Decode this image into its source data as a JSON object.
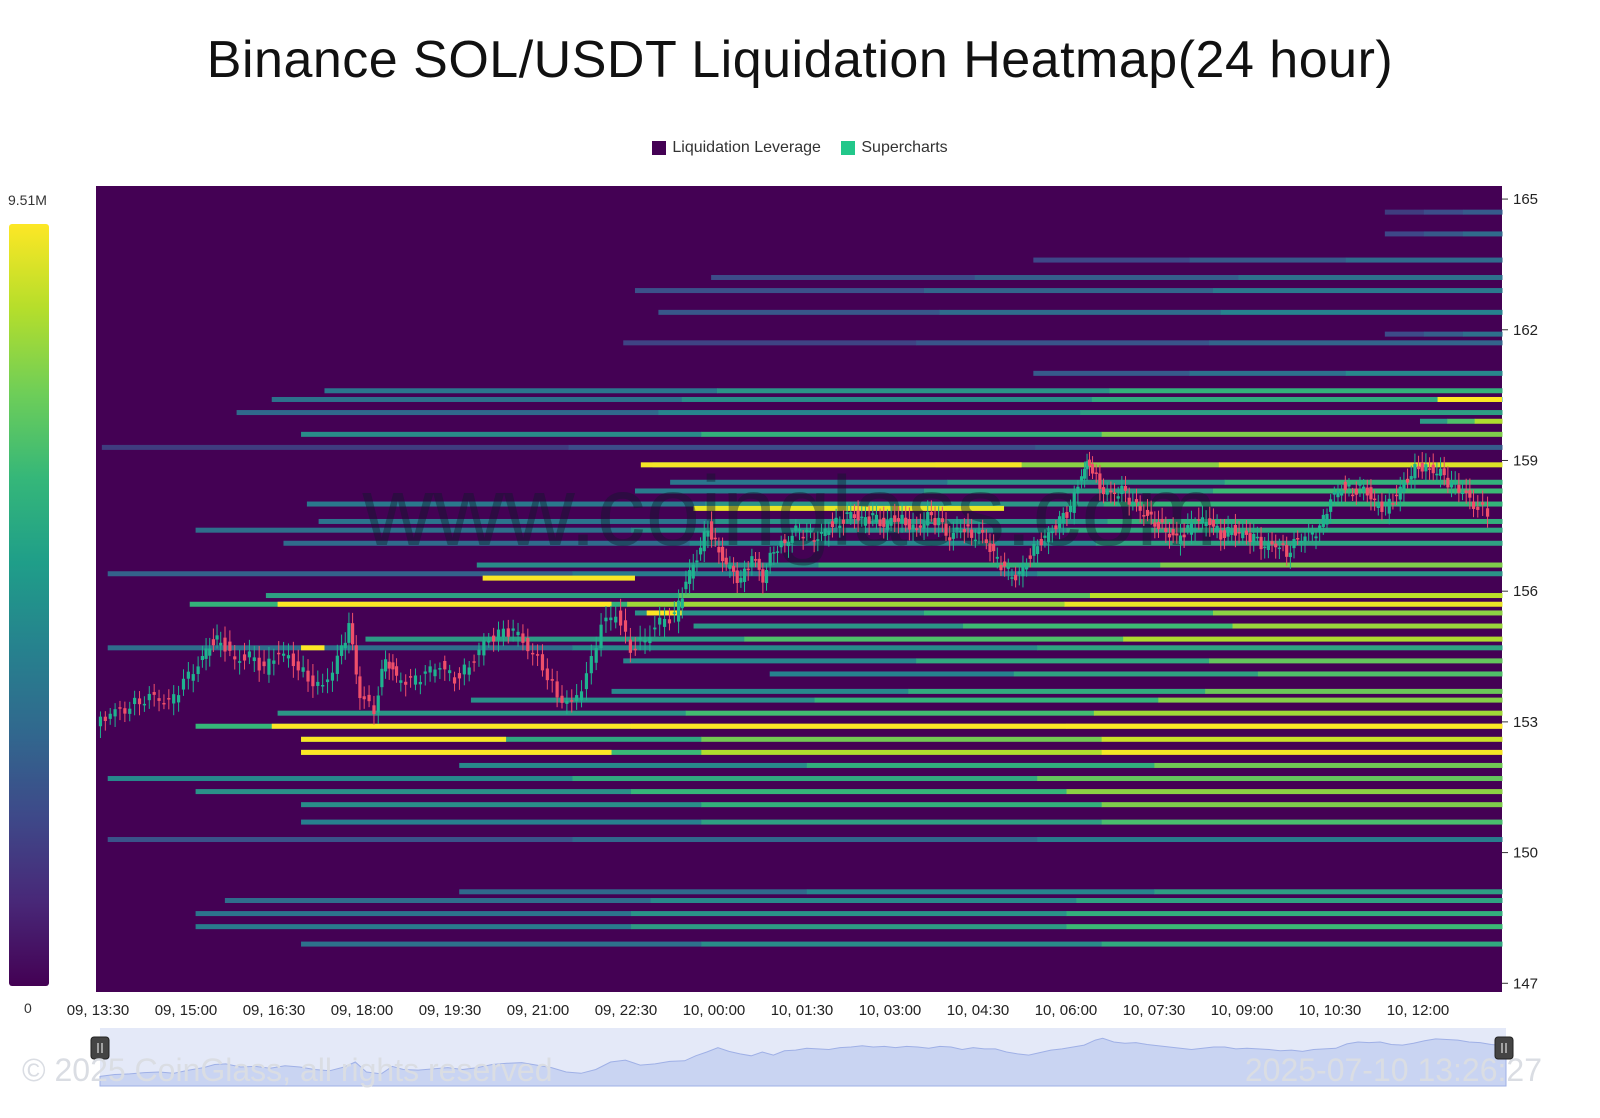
{
  "title": "Binance SOL/USDT Liquidation Heatmap(24 hour)",
  "legend": [
    {
      "label": "Liquidation Leverage",
      "color": "#440154"
    },
    {
      "label": "Supercharts",
      "color": "#22c78a"
    }
  ],
  "colorbar": {
    "max_label": "9.51M",
    "min_label": "0"
  },
  "watermark": "www.coinglass.com",
  "footer": {
    "copyright": "© 2025 CoinGlass, all rights reserved",
    "timestamp": "2025-07-10 13:26:27"
  },
  "chart_data": {
    "type": "heatmap",
    "title": "Binance SOL/USDT Liquidation Heatmap(24 hour)",
    "x_tick_labels": [
      "09, 13:30",
      "09, 15:00",
      "09, 16:30",
      "09, 18:00",
      "09, 19:30",
      "09, 21:00",
      "09, 22:30",
      "10, 00:00",
      "10, 01:30",
      "10, 03:00",
      "10, 04:30",
      "10, 06:00",
      "10, 07:30",
      "10, 09:00",
      "10, 10:30",
      "10, 12:00"
    ],
    "y_tick_labels": [
      "165",
      "162",
      "159",
      "156",
      "153",
      "150",
      "147"
    ],
    "y_range": [
      146.8,
      165.3
    ],
    "x_range_hours": [
      0,
      24
    ],
    "background_color": "#440154",
    "colorscale": [
      "#440154",
      "#3e4989",
      "#26828e",
      "#35b779",
      "#b5de2b",
      "#fde725"
    ],
    "value_range": [
      0,
      9.51
    ],
    "value_unit": "M",
    "liquidation_bands": [
      {
        "price": 164.7,
        "start_hour": 22,
        "value": 2.5
      },
      {
        "price": 164.2,
        "start_hour": 22,
        "value": 3.0
      },
      {
        "price": 163.6,
        "start_hour": 16,
        "value": 3.0
      },
      {
        "price": 163.2,
        "start_hour": 10.5,
        "value": 3.2
      },
      {
        "price": 162.9,
        "start_hour": 9.2,
        "value": 3.5
      },
      {
        "price": 162.4,
        "start_hour": 9.6,
        "value": 3.8
      },
      {
        "price": 161.9,
        "start_hour": 22,
        "value": 3.2
      },
      {
        "price": 161.7,
        "start_hour": 9.0,
        "value": 2.8
      },
      {
        "price": 161.0,
        "start_hour": 16.0,
        "value": 4.0
      },
      {
        "price": 160.6,
        "start_hour": 3.9,
        "value": 5.5
      },
      {
        "price": 160.4,
        "start_hour": 3.0,
        "value": 5.2
      },
      {
        "price": 160.1,
        "start_hour": 2.4,
        "value": 4.8
      },
      {
        "price": 159.9,
        "start_hour": 22.6,
        "value": 7.5
      },
      {
        "price": 159.6,
        "start_hour": 3.5,
        "value": 6.8
      },
      {
        "price": 159.3,
        "start_hour": 0.1,
        "value": 2.5
      },
      {
        "price": 158.9,
        "start_hour": 9.5,
        "value": 8.6
      },
      {
        "price": 158.5,
        "start_hour": 9.8,
        "value": 5.5
      },
      {
        "price": 158.3,
        "start_hour": 9.2,
        "value": 5.8
      },
      {
        "price": 158.0,
        "start_hour": 3.6,
        "value": 5.6
      },
      {
        "price": 157.6,
        "start_hour": 3.8,
        "value": 5.4
      },
      {
        "price": 157.4,
        "start_hour": 1.7,
        "value": 5.1
      },
      {
        "price": 157.1,
        "start_hour": 3.2,
        "value": 4.9
      },
      {
        "price": 156.6,
        "start_hour": 6.5,
        "value": 6.8
      },
      {
        "price": 156.4,
        "start_hour": 0.2,
        "value": 4.4
      },
      {
        "price": 155.9,
        "start_hour": 2.9,
        "value": 7.8
      },
      {
        "price": 155.7,
        "start_hour": 1.6,
        "value": 9.0
      },
      {
        "price": 155.5,
        "start_hour": 9.2,
        "value": 7.0
      },
      {
        "price": 155.2,
        "start_hour": 10.2,
        "value": 7.2
      },
      {
        "price": 154.9,
        "start_hour": 4.6,
        "value": 7.5
      },
      {
        "price": 154.7,
        "start_hour": 0.2,
        "value": 5.0
      },
      {
        "price": 154.4,
        "start_hour": 9.0,
        "value": 6.4
      },
      {
        "price": 154.1,
        "start_hour": 11.5,
        "value": 6.1
      },
      {
        "price": 153.7,
        "start_hour": 8.8,
        "value": 6.5
      },
      {
        "price": 153.5,
        "start_hour": 6.4,
        "value": 6.9
      },
      {
        "price": 153.2,
        "start_hour": 3.1,
        "value": 7.3
      },
      {
        "price": 152.9,
        "start_hour": 1.7,
        "value": 9.2
      },
      {
        "price": 152.6,
        "start_hour": 3.5,
        "value": 8.2
      },
      {
        "price": 152.3,
        "start_hour": 3.5,
        "value": 9.3
      },
      {
        "price": 152.0,
        "start_hour": 6.2,
        "value": 6.6
      },
      {
        "price": 151.7,
        "start_hour": 0.2,
        "value": 6.4
      },
      {
        "price": 151.4,
        "start_hour": 1.7,
        "value": 7.0
      },
      {
        "price": 151.1,
        "start_hour": 3.5,
        "value": 6.8
      },
      {
        "price": 150.7,
        "start_hour": 3.5,
        "value": 6.0
      },
      {
        "price": 150.3,
        "start_hour": 0.2,
        "value": 3.6
      },
      {
        "price": 149.1,
        "start_hour": 6.2,
        "value": 4.8
      },
      {
        "price": 148.9,
        "start_hour": 2.2,
        "value": 5.0
      },
      {
        "price": 148.6,
        "start_hour": 1.7,
        "value": 5.4
      },
      {
        "price": 148.3,
        "start_hour": 1.7,
        "value": 5.8
      },
      {
        "price": 147.9,
        "start_hour": 3.5,
        "value": 5.2
      }
    ],
    "hotspots": [
      {
        "price": 158.9,
        "start_hour": 9.3,
        "end_hour": 15.8,
        "value": 9.3
      },
      {
        "price": 157.9,
        "start_hour": 10.2,
        "end_hour": 15.5,
        "value": 9.0
      },
      {
        "price": 156.3,
        "start_hour": 6.6,
        "end_hour": 9.2,
        "value": 9.4
      },
      {
        "price": 155.7,
        "start_hour": 3.1,
        "end_hour": 8.8,
        "value": 9.5
      },
      {
        "price": 155.5,
        "start_hour": 9.4,
        "end_hour": 10.0,
        "value": 9.5
      },
      {
        "price": 154.7,
        "start_hour": 3.5,
        "end_hour": 3.9,
        "value": 9.5
      },
      {
        "price": 152.9,
        "start_hour": 3.0,
        "end_hour": 24.0,
        "value": 9.5
      },
      {
        "price": 152.6,
        "start_hour": 3.5,
        "end_hour": 7.0,
        "value": 9.4
      },
      {
        "price": 152.3,
        "start_hour": 3.5,
        "end_hour": 8.8,
        "value": 9.5
      },
      {
        "price": 160.4,
        "start_hour": 22.9,
        "end_hour": 24.0,
        "value": 9.5
      }
    ],
    "price_candles": {
      "close_path": [
        [
          0.0,
          152.9
        ],
        [
          0.4,
          153.2
        ],
        [
          0.8,
          153.3
        ],
        [
          1.2,
          153.5
        ],
        [
          1.6,
          153.6
        ],
        [
          2.0,
          153.4
        ],
        [
          2.4,
          153.9
        ],
        [
          2.8,
          154.3
        ],
        [
          3.1,
          154.8
        ],
        [
          3.4,
          154.9
        ],
        [
          3.8,
          154.4
        ],
        [
          4.2,
          154.5
        ],
        [
          4.6,
          154.2
        ],
        [
          5.0,
          154.6
        ],
        [
          5.4,
          154.4
        ],
        [
          5.8,
          154.0
        ],
        [
          6.2,
          153.8
        ],
        [
          6.6,
          154.4
        ],
        [
          6.9,
          155.2
        ],
        [
          7.2,
          153.6
        ],
        [
          7.6,
          153.3
        ],
        [
          7.9,
          154.5
        ],
        [
          8.2,
          154.0
        ],
        [
          8.6,
          153.9
        ],
        [
          9.0,
          154.1
        ],
        [
          9.4,
          154.3
        ],
        [
          9.8,
          154.0
        ],
        [
          10.2,
          154.3
        ],
        [
          10.6,
          154.8
        ],
        [
          11.0,
          155.0
        ],
        [
          11.4,
          155.1
        ],
        [
          11.8,
          154.7
        ],
        [
          12.2,
          154.3
        ],
        [
          12.6,
          153.6
        ],
        [
          13.0,
          153.4
        ],
        [
          13.4,
          154.0
        ],
        [
          13.8,
          155.2
        ],
        [
          14.2,
          155.5
        ],
        [
          14.6,
          154.7
        ],
        [
          15.0,
          154.9
        ],
        [
          15.4,
          155.3
        ],
        [
          15.8,
          155.4
        ],
        [
          16.1,
          156.2
        ],
        [
          16.4,
          156.8
        ],
        [
          16.7,
          157.5
        ],
        [
          17.0,
          156.9
        ],
        [
          17.3,
          156.5
        ],
        [
          17.6,
          156.2
        ],
        [
          17.9,
          156.8
        ],
        [
          18.2,
          156.3
        ],
        [
          18.5,
          157.0
        ],
        [
          18.8,
          157.1
        ],
        [
          19.1,
          157.4
        ],
        [
          19.4,
          157.3
        ],
        [
          19.7,
          157.2
        ],
        [
          20.0,
          157.5
        ],
        [
          20.3,
          157.6
        ],
        [
          20.6,
          157.8
        ],
        [
          20.9,
          157.6
        ],
        [
          21.2,
          157.7
        ],
        [
          21.5,
          157.5
        ],
        [
          21.8,
          157.7
        ],
        [
          22.1,
          157.6
        ],
        [
          22.4,
          157.4
        ],
        [
          22.7,
          157.7
        ],
        [
          23.0,
          157.6
        ],
        [
          23.3,
          157.2
        ],
        [
          23.6,
          157.5
        ],
        [
          23.9,
          157.3
        ],
        [
          24.2,
          157.3
        ],
        [
          24.5,
          156.8
        ],
        [
          24.8,
          156.5
        ],
        [
          25.1,
          156.3
        ],
        [
          25.4,
          156.7
        ],
        [
          25.7,
          157.1
        ],
        [
          26.0,
          157.3
        ],
        [
          26.3,
          157.6
        ],
        [
          26.6,
          157.9
        ],
        [
          26.9,
          158.7
        ],
        [
          27.1,
          159.0
        ],
        [
          27.4,
          158.4
        ],
        [
          27.7,
          158.2
        ],
        [
          28.0,
          158.3
        ],
        [
          28.3,
          158.0
        ],
        [
          28.6,
          157.8
        ],
        [
          28.9,
          157.6
        ],
        [
          29.2,
          157.4
        ],
        [
          29.5,
          157.2
        ],
        [
          29.8,
          157.4
        ],
        [
          30.1,
          157.6
        ],
        [
          30.4,
          157.6
        ],
        [
          30.7,
          157.3
        ],
        [
          31.0,
          157.4
        ],
        [
          31.3,
          157.3
        ],
        [
          31.6,
          157.2
        ],
        [
          31.9,
          157.0
        ],
        [
          32.2,
          157.1
        ],
        [
          32.5,
          156.9
        ],
        [
          32.8,
          157.2
        ],
        [
          33.1,
          157.3
        ],
        [
          33.4,
          157.4
        ],
        [
          33.7,
          158.1
        ],
        [
          34.0,
          158.4
        ],
        [
          34.3,
          158.3
        ],
        [
          34.6,
          158.4
        ],
        [
          34.9,
          158.0
        ],
        [
          35.2,
          157.9
        ],
        [
          35.5,
          158.2
        ],
        [
          35.8,
          158.6
        ],
        [
          36.1,
          158.9
        ],
        [
          36.4,
          158.8
        ],
        [
          36.7,
          158.7
        ],
        [
          37.0,
          158.4
        ],
        [
          37.3,
          158.3
        ],
        [
          37.6,
          158.0
        ],
        [
          38.0,
          157.8
        ]
      ]
    }
  }
}
